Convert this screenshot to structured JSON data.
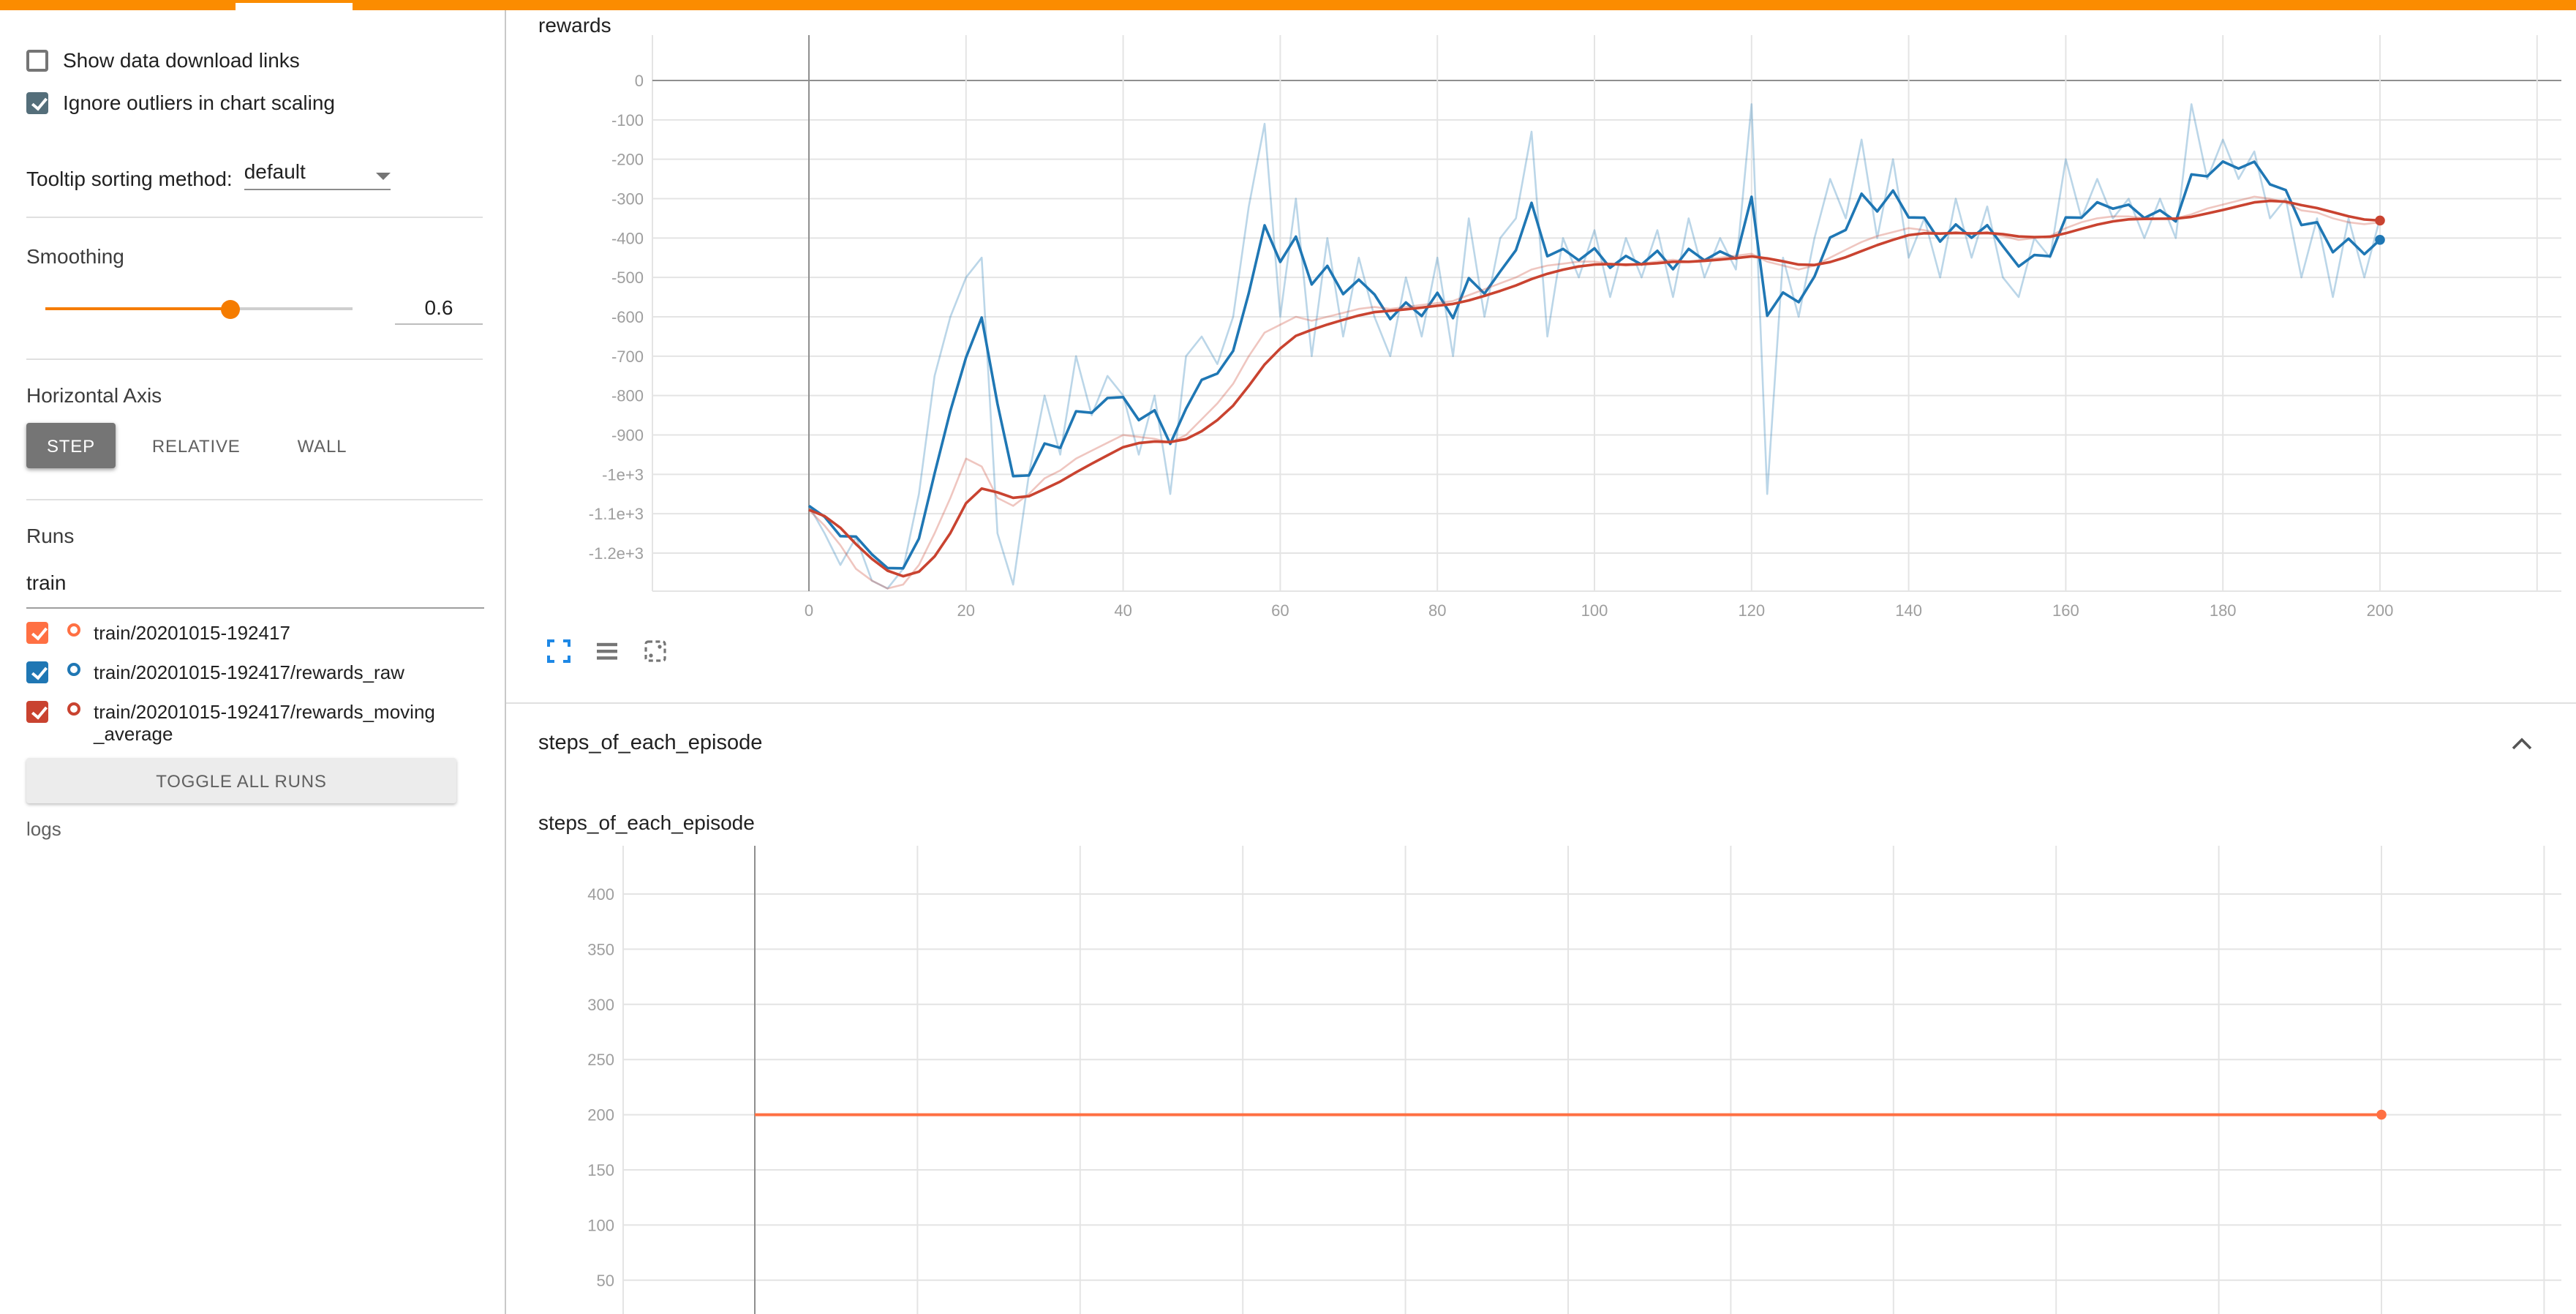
{
  "colors": {
    "header_bar": "#fb8c00",
    "accent_orange": "#f57c00",
    "checkbox_checked": "#546e7a"
  },
  "icons": {
    "chart_toolbar": [
      "expand-icon",
      "data-table-icon",
      "fit-domain-icon"
    ],
    "section_collapse": "chevron-up-icon",
    "tooltip_dropdown": "triangle-down-icon"
  },
  "sidebar": {
    "show_download": {
      "label": "Show data download links",
      "checked": false
    },
    "ignore_outliers": {
      "label": "Ignore outliers in chart scaling",
      "checked": true
    },
    "tooltip_sorting": {
      "label": "Tooltip sorting method:",
      "value": "default"
    },
    "smoothing": {
      "label": "Smoothing",
      "value": "0.6"
    },
    "horizontal_axis": {
      "label": "Horizontal Axis",
      "options": [
        "STEP",
        "RELATIVE",
        "WALL"
      ],
      "selected": "STEP"
    },
    "runs": {
      "label": "Runs",
      "filter_value": "train",
      "items": [
        {
          "label": "train/20201015-192417",
          "color": "#ff7043",
          "checked": true
        },
        {
          "label": "train/20201015-192417/rewards_raw",
          "color": "#1f77b4",
          "checked": true
        },
        {
          "label": "train/20201015-192417/rewards_moving_average",
          "color": "#c94330",
          "checked": true
        }
      ],
      "toggle_all_label": "TOGGLE ALL RUNS"
    },
    "logdir": "logs"
  },
  "chart_data": [
    {
      "type": "line",
      "title": "rewards",
      "smoothing": 0.6,
      "xlim": [
        0,
        220
      ],
      "ylim": [
        -1300,
        70
      ],
      "grid": true,
      "xticks": [
        0,
        20,
        40,
        60,
        80,
        100,
        120,
        140,
        160,
        180,
        200
      ],
      "xtick_labels": [
        "0",
        "20",
        "40",
        "60",
        "80",
        "100",
        "120",
        "140",
        "160",
        "180",
        "200"
      ],
      "yticks": [
        0,
        -100,
        -200,
        -300,
        -400,
        -500,
        -600,
        -700,
        -800,
        -900,
        -1000,
        -1100,
        -1200
      ],
      "ytick_labels": [
        "0",
        "-100",
        "-200",
        "-300",
        "-400",
        "-500",
        "-600",
        "-700",
        "-800",
        "-900",
        "-1e+3",
        "-1.1e+3",
        "-1.2e+3"
      ],
      "series": [
        {
          "name": "train/20201015-192417/rewards_raw",
          "color": "#1f77b4",
          "show_raw_light": true,
          "x_start": 0,
          "x_step": 2,
          "y": [
            -1080,
            -1150,
            -1230,
            -1160,
            -1270,
            -1290,
            -1240,
            -1050,
            -750,
            -600,
            -500,
            -450,
            -1150,
            -1280,
            -1000,
            -800,
            -950,
            -700,
            -850,
            -750,
            -800,
            -950,
            -800,
            -1050,
            -700,
            -650,
            -720,
            -600,
            -320,
            -110,
            -600,
            -300,
            -700,
            -400,
            -650,
            -450,
            -600,
            -700,
            -500,
            -650,
            -450,
            -700,
            -350,
            -600,
            -400,
            -350,
            -130,
            -650,
            -400,
            -500,
            -380,
            -550,
            -400,
            -500,
            -380,
            -550,
            -350,
            -500,
            -400,
            -480,
            -60,
            -1050,
            -450,
            -600,
            -400,
            -250,
            -350,
            -150,
            -400,
            -200,
            -450,
            -350,
            -500,
            -300,
            -450,
            -320,
            -500,
            -550,
            -400,
            -450,
            -200,
            -350,
            -250,
            -350,
            -300,
            -400,
            -300,
            -400,
            -60,
            -250,
            -150,
            -250,
            -180,
            -350,
            -300,
            -500,
            -350,
            -550,
            -350,
            -500,
            -350
          ]
        },
        {
          "name": "train/20201015-192417/rewards_moving_average",
          "color": "#c94330",
          "show_raw_light": true,
          "x_start": 0,
          "x_step": 2,
          "y": [
            -1090,
            -1130,
            -1180,
            -1240,
            -1270,
            -1290,
            -1280,
            -1230,
            -1150,
            -1060,
            -960,
            -980,
            -1060,
            -1080,
            -1050,
            -1010,
            -990,
            -960,
            -940,
            -920,
            -900,
            -905,
            -910,
            -920,
            -900,
            -860,
            -820,
            -770,
            -700,
            -640,
            -620,
            -600,
            -610,
            -600,
            -590,
            -580,
            -575,
            -580,
            -575,
            -570,
            -565,
            -560,
            -545,
            -530,
            -515,
            -500,
            -480,
            -470,
            -465,
            -460,
            -460,
            -465,
            -470,
            -465,
            -460,
            -455,
            -460,
            -455,
            -450,
            -445,
            -440,
            -460,
            -470,
            -480,
            -470,
            -450,
            -430,
            -410,
            -395,
            -385,
            -375,
            -380,
            -390,
            -385,
            -390,
            -385,
            -395,
            -405,
            -400,
            -395,
            -375,
            -360,
            -350,
            -345,
            -345,
            -350,
            -350,
            -350,
            -340,
            -325,
            -315,
            -305,
            -295,
            -300,
            -310,
            -330,
            -335,
            -350,
            -360,
            -365,
            -360
          ]
        }
      ]
    },
    {
      "type": "line",
      "title": "steps_of_each_episode",
      "xlim": [
        0,
        220
      ],
      "ylim": [
        20,
        440
      ],
      "grid": true,
      "xticks": [
        0,
        20,
        40,
        60,
        80,
        100,
        120,
        140,
        160,
        180,
        200
      ],
      "yticks": [
        400,
        350,
        300,
        250,
        200,
        150,
        100,
        50
      ],
      "ytick_labels": [
        "400",
        "350",
        "300",
        "250",
        "200",
        "150",
        "100",
        "50"
      ],
      "series": [
        {
          "name": "train/20201015-192417",
          "color": "#ff7043",
          "show_raw_light": false,
          "x_start": 0,
          "x_step": 200,
          "y": [
            200,
            200
          ]
        }
      ]
    }
  ]
}
